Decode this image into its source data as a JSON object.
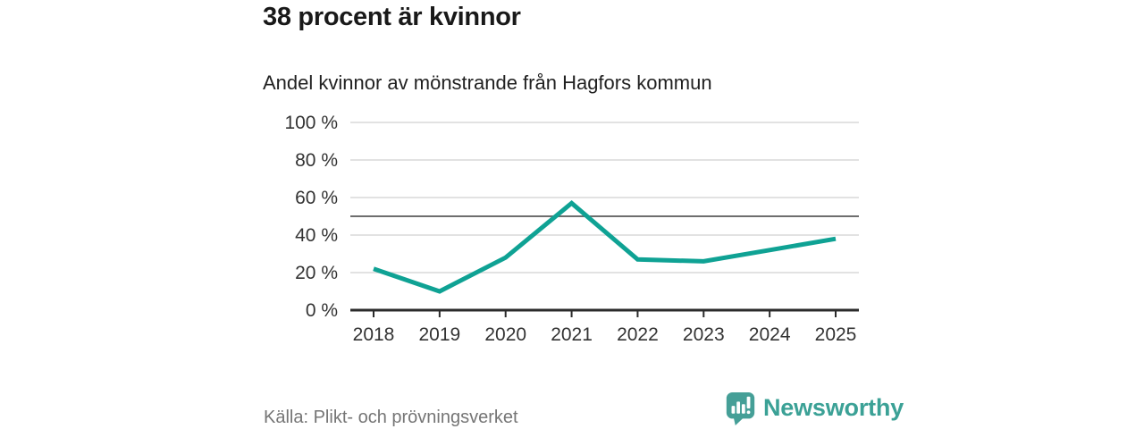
{
  "header": {
    "title": "38 procent är kvinnor",
    "subtitle": "Andel kvinnor av mönstrande från Hagfors kommun"
  },
  "chart_data": {
    "type": "line",
    "title": "38 procent är kvinnor",
    "subtitle": "Andel kvinnor av mönstrande från Hagfors kommun",
    "categories": [
      "2018",
      "2019",
      "2020",
      "2021",
      "2022",
      "2023",
      "2024",
      "2025"
    ],
    "values": [
      22,
      10,
      28,
      57,
      27,
      26,
      32,
      38
    ],
    "series_name": "Andel kvinnor av mönstrande",
    "unit": "%",
    "xlabel": "",
    "ylabel": "",
    "ylim": [
      0,
      100
    ],
    "yticks": [
      0,
      20,
      40,
      60,
      80,
      100
    ],
    "ytick_suffix": " %",
    "reference_line": 50,
    "grid": true,
    "legend": "none",
    "line_color": "#0fa294",
    "grid_color": "#d9d9d9",
    "axis_color": "#2b2b2b",
    "reference_line_color": "#6e6e6e",
    "label_color": "#333333"
  },
  "footer": {
    "source": "Källa: Plikt- och prövningsverket",
    "logo": {
      "text": "Newsworthy",
      "text_color": "#3ba196",
      "icon_color": "#459f97",
      "icon": "newsworthy-speech-bubble-bar-chart"
    }
  }
}
